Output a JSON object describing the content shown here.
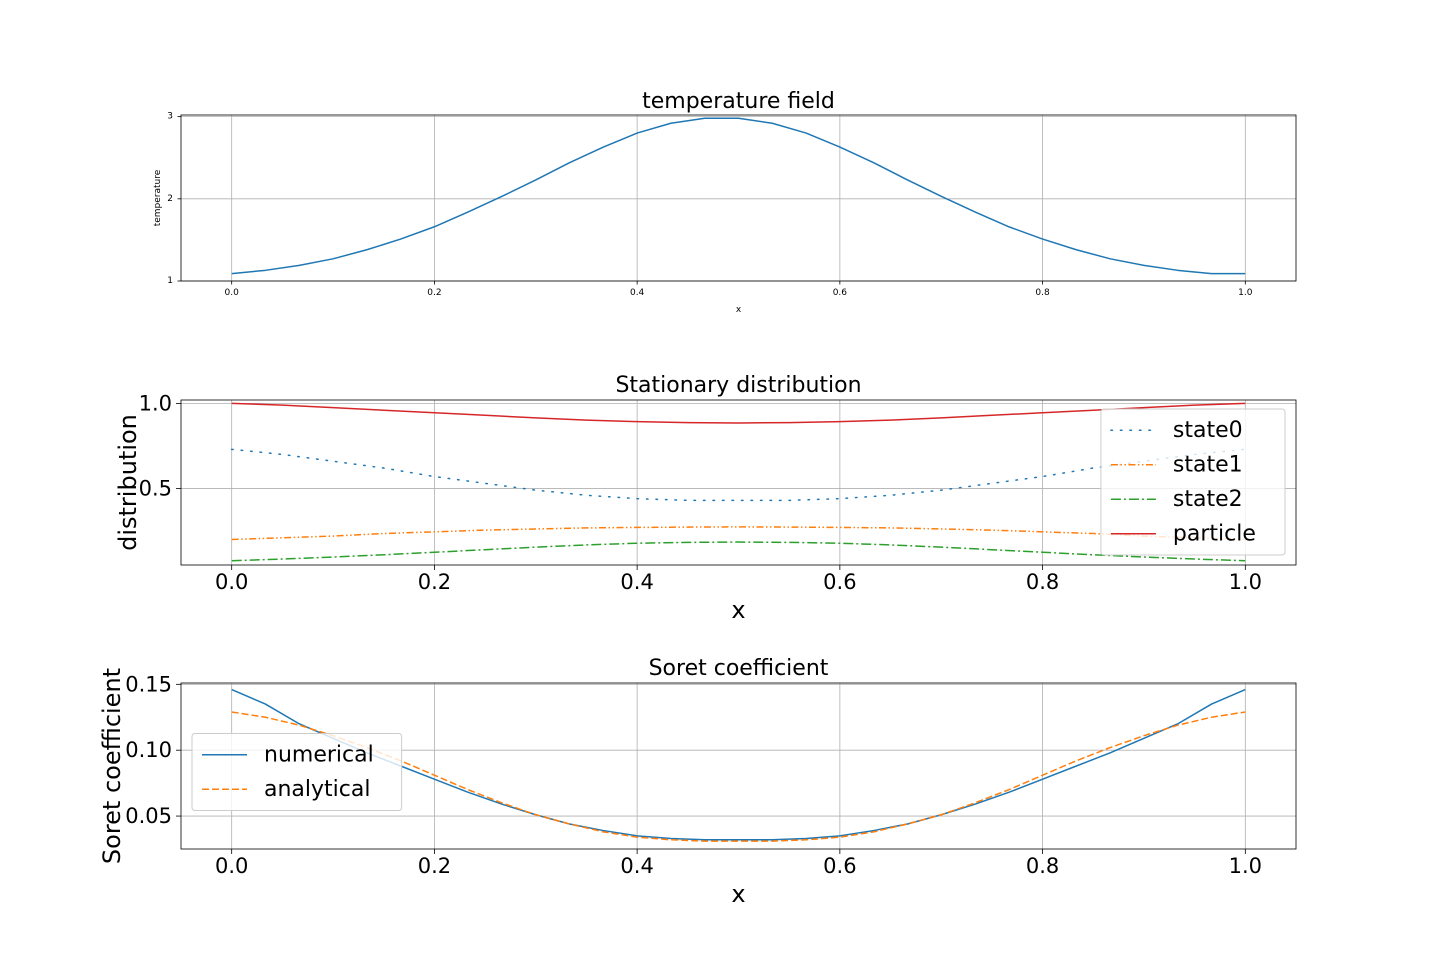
{
  "colors": {
    "blue": "#1f77b4",
    "orange": "#ff7f0e",
    "green": "#2ca02c",
    "red": "#d62728",
    "grid": "#b0b0b0",
    "legend_border": "#cccccc"
  },
  "chart_data": [
    {
      "type": "line",
      "title": "temperature field",
      "xlabel": "x",
      "ylabel": "temperature",
      "xlim": [
        -0.05,
        1.05
      ],
      "ylim": [
        1.0,
        3.02
      ],
      "xticks": [
        0.0,
        0.2,
        0.4,
        0.6,
        0.8,
        1.0
      ],
      "xtick_labels": [
        "0.0",
        "0.2",
        "0.4",
        "0.6",
        "0.8",
        "1.0"
      ],
      "yticks": [
        1,
        2,
        3
      ],
      "ytick_labels": [
        "1",
        "2",
        "3"
      ],
      "grid": true,
      "legend": null,
      "x": [
        0.0,
        0.0333,
        0.0667,
        0.1,
        0.1333,
        0.1667,
        0.2,
        0.2333,
        0.2667,
        0.3,
        0.3333,
        0.3667,
        0.4,
        0.4333,
        0.4667,
        0.5,
        0.5333,
        0.5667,
        0.6,
        0.6333,
        0.6667,
        0.7,
        0.7333,
        0.7667,
        0.8,
        0.8333,
        0.8667,
        0.9,
        0.9333,
        0.9667,
        1.0
      ],
      "series": [
        {
          "style": "solid",
          "color": "#1f77b4",
          "values": [
            1.09,
            1.13,
            1.19,
            1.27,
            1.38,
            1.51,
            1.66,
            1.84,
            2.03,
            2.23,
            2.44,
            2.63,
            2.8,
            2.92,
            2.98,
            2.98,
            2.92,
            2.8,
            2.63,
            2.44,
            2.23,
            2.03,
            1.84,
            1.66,
            1.51,
            1.38,
            1.27,
            1.19,
            1.13,
            1.09,
            1.09
          ]
        }
      ]
    },
    {
      "type": "line",
      "title": "Stationary distribution",
      "xlabel": "x",
      "ylabel": "distribution",
      "xlim": [
        -0.05,
        1.05
      ],
      "ylim": [
        0.05,
        1.02
      ],
      "xticks": [
        0.0,
        0.2,
        0.4,
        0.6,
        0.8,
        1.0
      ],
      "xtick_labels": [
        "0.0",
        "0.2",
        "0.4",
        "0.6",
        "0.8",
        "1.0"
      ],
      "yticks": [
        0.5,
        1.0
      ],
      "ytick_labels": [
        "0.5",
        "1.0"
      ],
      "grid": true,
      "legend": "upper right",
      "x": [
        0.0,
        0.05,
        0.1,
        0.15,
        0.2,
        0.25,
        0.3,
        0.35,
        0.4,
        0.45,
        0.5,
        0.55,
        0.6,
        0.65,
        0.7,
        0.75,
        0.8,
        0.85,
        0.9,
        0.95,
        1.0
      ],
      "series": [
        {
          "name": "state0",
          "style": "dotted",
          "color": "#1f77b4",
          "values": [
            0.73,
            0.7,
            0.66,
            0.62,
            0.57,
            0.53,
            0.49,
            0.46,
            0.44,
            0.43,
            0.43,
            0.43,
            0.44,
            0.46,
            0.49,
            0.53,
            0.57,
            0.62,
            0.66,
            0.7,
            0.73
          ]
        },
        {
          "name": "state1",
          "style": "dashdotdot",
          "color": "#ff7f0e",
          "values": [
            0.2,
            0.21,
            0.22,
            0.235,
            0.245,
            0.255,
            0.262,
            0.268,
            0.271,
            0.273,
            0.274,
            0.273,
            0.271,
            0.268,
            0.262,
            0.255,
            0.245,
            0.235,
            0.22,
            0.21,
            0.2
          ]
        },
        {
          "name": "state2",
          "style": "dashdot",
          "color": "#2ca02c",
          "values": [
            0.075,
            0.085,
            0.097,
            0.11,
            0.125,
            0.14,
            0.155,
            0.168,
            0.178,
            0.183,
            0.185,
            0.183,
            0.178,
            0.168,
            0.155,
            0.14,
            0.125,
            0.11,
            0.097,
            0.085,
            0.075
          ]
        },
        {
          "name": "particle",
          "style": "solid",
          "color": "#d62728",
          "values": [
            1.0,
            0.99,
            0.975,
            0.96,
            0.945,
            0.93,
            0.915,
            0.902,
            0.893,
            0.887,
            0.885,
            0.887,
            0.893,
            0.902,
            0.915,
            0.93,
            0.945,
            0.96,
            0.975,
            0.99,
            1.0
          ]
        }
      ]
    },
    {
      "type": "line",
      "title": "Soret coefficient",
      "xlabel": "x",
      "ylabel": "Soret coefficient",
      "xlim": [
        -0.05,
        1.05
      ],
      "ylim": [
        0.025,
        0.151
      ],
      "xticks": [
        0.0,
        0.2,
        0.4,
        0.6,
        0.8,
        1.0
      ],
      "xtick_labels": [
        "0.0",
        "0.2",
        "0.4",
        "0.6",
        "0.8",
        "1.0"
      ],
      "yticks": [
        0.05,
        0.1,
        0.15
      ],
      "ytick_labels": [
        "0.05",
        "0.10",
        "0.15"
      ],
      "grid": true,
      "legend": "center left",
      "x": [
        0.0,
        0.0333,
        0.0667,
        0.1,
        0.1333,
        0.1667,
        0.2,
        0.2333,
        0.2667,
        0.3,
        0.3333,
        0.3667,
        0.4,
        0.4333,
        0.4667,
        0.5,
        0.5333,
        0.5667,
        0.6,
        0.6333,
        0.6667,
        0.7,
        0.7333,
        0.7667,
        0.8,
        0.8333,
        0.8667,
        0.9,
        0.9333,
        0.9667,
        1.0
      ],
      "series": [
        {
          "name": "numerical",
          "style": "solid",
          "color": "#1f77b4",
          "values": [
            0.146,
            0.135,
            0.12,
            0.109,
            0.098,
            0.088,
            0.078,
            0.068,
            0.059,
            0.051,
            0.044,
            0.039,
            0.035,
            0.033,
            0.032,
            0.032,
            0.032,
            0.033,
            0.035,
            0.039,
            0.044,
            0.051,
            0.059,
            0.068,
            0.078,
            0.088,
            0.098,
            0.109,
            0.12,
            0.135,
            0.146
          ]
        },
        {
          "name": "analytical",
          "style": "dashed",
          "color": "#ff7f0e",
          "values": [
            0.129,
            0.125,
            0.119,
            0.111,
            0.102,
            0.092,
            0.081,
            0.07,
            0.06,
            0.051,
            0.044,
            0.038,
            0.034,
            0.032,
            0.031,
            0.031,
            0.031,
            0.032,
            0.034,
            0.038,
            0.044,
            0.051,
            0.06,
            0.07,
            0.081,
            0.092,
            0.102,
            0.111,
            0.119,
            0.125,
            0.129
          ]
        }
      ]
    }
  ]
}
